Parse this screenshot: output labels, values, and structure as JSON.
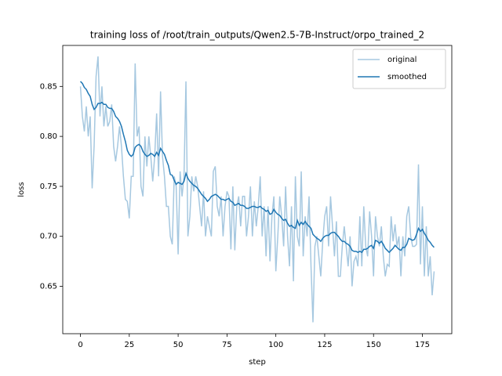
{
  "chart_data": {
    "type": "line",
    "title": "training loss of /root/train_outputs/Qwen2.5-7B-Instruct/orpo_trained_2",
    "xlabel": "step",
    "ylabel": "loss",
    "x": [
      0,
      1,
      2,
      3,
      4,
      5,
      6,
      7,
      8,
      9,
      10,
      11,
      12,
      13,
      14,
      15,
      16,
      17,
      18,
      19,
      20,
      21,
      22,
      23,
      24,
      25,
      26,
      27,
      28,
      29,
      30,
      31,
      32,
      33,
      34,
      35,
      36,
      37,
      38,
      39,
      40,
      41,
      42,
      43,
      44,
      45,
      46,
      47,
      48,
      49,
      50,
      51,
      52,
      53,
      54,
      55,
      56,
      57,
      58,
      59,
      60,
      61,
      62,
      63,
      64,
      65,
      66,
      67,
      68,
      69,
      70,
      71,
      72,
      73,
      74,
      75,
      76,
      77,
      78,
      79,
      80,
      81,
      82,
      83,
      84,
      85,
      86,
      87,
      88,
      89,
      90,
      91,
      92,
      93,
      94,
      95,
      96,
      97,
      98,
      99,
      100,
      101,
      102,
      103,
      104,
      105,
      106,
      107,
      108,
      109,
      110,
      111,
      112,
      113,
      114,
      115,
      116,
      117,
      118,
      119,
      120,
      121,
      122,
      123,
      124,
      125,
      126,
      127,
      128,
      129,
      130,
      131,
      132,
      133,
      134,
      135,
      136,
      137,
      138,
      139,
      140,
      141,
      142,
      143,
      144,
      145,
      146,
      147,
      148,
      149,
      150,
      151,
      152,
      153,
      154,
      155,
      156,
      157,
      158,
      159,
      160,
      161,
      162,
      163,
      164,
      165,
      166,
      167,
      168,
      169,
      170,
      171,
      172,
      173,
      174,
      175,
      176,
      177,
      178,
      179,
      180,
      181
    ],
    "series": [
      {
        "name": "original",
        "color": "#a6c8e0",
        "values": [
          0.85,
          0.82,
          0.805,
          0.83,
          0.8,
          0.82,
          0.748,
          0.79,
          0.86,
          0.88,
          0.82,
          0.85,
          0.81,
          0.83,
          0.81,
          0.815,
          0.832,
          0.79,
          0.775,
          0.79,
          0.81,
          0.79,
          0.76,
          0.737,
          0.735,
          0.718,
          0.76,
          0.76,
          0.873,
          0.8,
          0.81,
          0.75,
          0.74,
          0.8,
          0.77,
          0.8,
          0.78,
          0.755,
          0.78,
          0.823,
          0.76,
          0.845,
          0.78,
          0.76,
          0.73,
          0.73,
          0.7,
          0.692,
          0.76,
          0.75,
          0.682,
          0.765,
          0.74,
          0.76,
          0.855,
          0.7,
          0.72,
          0.76,
          0.745,
          0.76,
          0.75,
          0.73,
          0.71,
          0.745,
          0.7,
          0.72,
          0.71,
          0.7,
          0.765,
          0.77,
          0.73,
          0.72,
          0.74,
          0.7,
          0.73,
          0.745,
          0.74,
          0.687,
          0.75,
          0.686,
          0.73,
          0.74,
          0.71,
          0.74,
          0.74,
          0.7,
          0.72,
          0.75,
          0.7,
          0.735,
          0.71,
          0.73,
          0.76,
          0.7,
          0.73,
          0.68,
          0.73,
          0.675,
          0.72,
          0.74,
          0.665,
          0.7,
          0.74,
          0.72,
          0.69,
          0.75,
          0.7,
          0.67,
          0.73,
          0.655,
          0.76,
          0.7,
          0.69,
          0.765,
          0.68,
          0.72,
          0.7,
          0.74,
          0.67,
          0.614,
          0.69,
          0.7,
          0.68,
          0.66,
          0.695,
          0.72,
          0.73,
          0.69,
          0.74,
          0.71,
          0.68,
          0.715,
          0.66,
          0.66,
          0.69,
          0.71,
          0.69,
          0.67,
          0.7,
          0.65,
          0.675,
          0.68,
          0.67,
          0.72,
          0.67,
          0.73,
          0.69,
          0.68,
          0.725,
          0.7,
          0.66,
          0.72,
          0.7,
          0.69,
          0.71,
          0.68,
          0.66,
          0.672,
          0.67,
          0.72,
          0.695,
          0.712,
          0.69,
          0.7,
          0.66,
          0.7,
          0.68,
          0.72,
          0.73,
          0.7,
          0.69,
          0.69,
          0.692,
          0.772,
          0.672,
          0.73,
          0.66,
          0.71,
          0.66,
          0.68,
          0.641,
          0.665
        ]
      },
      {
        "name": "smoothed",
        "color": "#1f77b4",
        "values": [
          0.855,
          0.853,
          0.849,
          0.847,
          0.843,
          0.84,
          0.832,
          0.827,
          0.829,
          0.833,
          0.833,
          0.834,
          0.832,
          0.832,
          0.829,
          0.828,
          0.828,
          0.825,
          0.82,
          0.818,
          0.815,
          0.81,
          0.802,
          0.795,
          0.786,
          0.782,
          0.78,
          0.782,
          0.789,
          0.791,
          0.792,
          0.79,
          0.785,
          0.782,
          0.78,
          0.781,
          0.783,
          0.782,
          0.78,
          0.784,
          0.781,
          0.788,
          0.785,
          0.782,
          0.776,
          0.771,
          0.762,
          0.761,
          0.756,
          0.752,
          0.754,
          0.753,
          0.752,
          0.755,
          0.763,
          0.758,
          0.755,
          0.753,
          0.751,
          0.75,
          0.748,
          0.745,
          0.742,
          0.74,
          0.738,
          0.735,
          0.737,
          0.74,
          0.741,
          0.742,
          0.741,
          0.739,
          0.737,
          0.737,
          0.736,
          0.737,
          0.738,
          0.735,
          0.734,
          0.731,
          0.732,
          0.733,
          0.731,
          0.731,
          0.73,
          0.728,
          0.728,
          0.729,
          0.73,
          0.73,
          0.729,
          0.729,
          0.73,
          0.728,
          0.727,
          0.725,
          0.726,
          0.722,
          0.723,
          0.727,
          0.724,
          0.722,
          0.721,
          0.718,
          0.716,
          0.717,
          0.713,
          0.71,
          0.711,
          0.709,
          0.708,
          0.716,
          0.711,
          0.714,
          0.712,
          0.715,
          0.712,
          0.71,
          0.708,
          0.702,
          0.7,
          0.698,
          0.697,
          0.695,
          0.698,
          0.7,
          0.701,
          0.701,
          0.703,
          0.704,
          0.704,
          0.702,
          0.7,
          0.697,
          0.695,
          0.695,
          0.693,
          0.692,
          0.69,
          0.686,
          0.685,
          0.685,
          0.684,
          0.685,
          0.684,
          0.687,
          0.687,
          0.688,
          0.69,
          0.691,
          0.688,
          0.696,
          0.695,
          0.693,
          0.695,
          0.692,
          0.688,
          0.686,
          0.684,
          0.686,
          0.688,
          0.691,
          0.689,
          0.687,
          0.686,
          0.689,
          0.689,
          0.692,
          0.698,
          0.697,
          0.696,
          0.697,
          0.702,
          0.708,
          0.705,
          0.707,
          0.703,
          0.7,
          0.696,
          0.694,
          0.691,
          0.689
        ]
      }
    ],
    "xlim": [
      -9.05,
      190.05
    ],
    "xticks": [
      0,
      25,
      50,
      75,
      100,
      125,
      150,
      175
    ],
    "ylim": [
      0.6026,
      0.891
    ],
    "yticks": [
      0.65,
      {
        "value": 0.7,
        "label": "0.70"
      },
      0.75,
      {
        "value": 0.8,
        "label": "0.80"
      },
      0.85
    ],
    "legend": "upper right"
  }
}
